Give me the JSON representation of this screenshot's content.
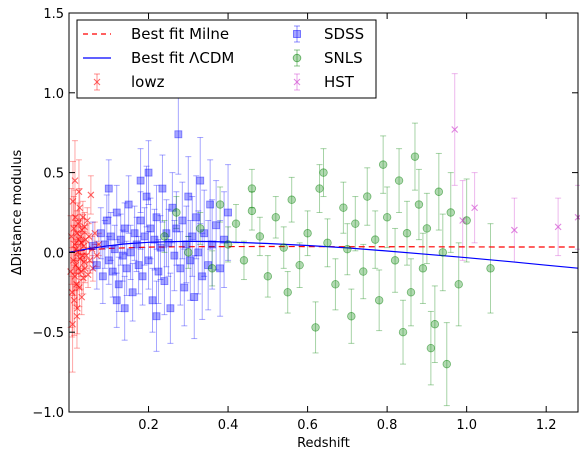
{
  "chart_data": {
    "type": "scatter",
    "xlabel": "Redshift",
    "ylabel": "ΔDistance modulus",
    "xlim": [
      0.0,
      1.28
    ],
    "ylim": [
      -1.0,
      1.5
    ],
    "xticks": [
      0.2,
      0.4,
      0.6,
      0.8,
      1.0,
      1.2
    ],
    "xtick_labels": [
      "0.2",
      "0.4",
      "0.6",
      "0.8",
      "1.0",
      "1.2"
    ],
    "yticks": [
      -1.0,
      -0.5,
      0.0,
      0.5,
      1.0,
      1.5
    ],
    "ytick_labels": [
      "−1.0",
      "−0.5",
      "0.0",
      "0.5",
      "1.0",
      "1.5"
    ],
    "grid": false,
    "legend_position": "top-left",
    "legend": [
      {
        "label": "Best fit Milne",
        "kind": "dashed-line",
        "color": "#ff0000"
      },
      {
        "label": "Best fit ΛCDM",
        "kind": "line",
        "color": "#0000ff"
      },
      {
        "label": "lowz",
        "kind": "errorbar-x",
        "color": "#ff0000"
      },
      {
        "label": "SDSS",
        "kind": "errorbar-square",
        "color": "#0000ff"
      },
      {
        "label": "SNLS",
        "kind": "errorbar-circle",
        "color": "#008000"
      },
      {
        "label": "HST",
        "kind": "errorbar-x",
        "color": "#cc33cc"
      }
    ],
    "series": [
      {
        "name": "Best fit Milne",
        "kind": "curve",
        "style": "dashed",
        "color": "#ff0000",
        "points": [
          [
            0.0,
            0.0
          ],
          [
            0.02,
            0.008
          ],
          [
            0.05,
            0.016
          ],
          [
            0.1,
            0.025
          ],
          [
            0.2,
            0.033
          ],
          [
            0.3,
            0.036
          ],
          [
            0.5,
            0.037
          ],
          [
            0.7,
            0.036
          ],
          [
            0.9,
            0.035
          ],
          [
            1.1,
            0.034
          ],
          [
            1.28,
            0.034
          ]
        ]
      },
      {
        "name": "Best fit ΛCDM",
        "kind": "curve",
        "style": "solid",
        "color": "#0000ff",
        "points": [
          [
            0.0,
            0.0
          ],
          [
            0.05,
            0.024
          ],
          [
            0.1,
            0.042
          ],
          [
            0.15,
            0.055
          ],
          [
            0.2,
            0.063
          ],
          [
            0.25,
            0.067
          ],
          [
            0.3,
            0.069
          ],
          [
            0.35,
            0.068
          ],
          [
            0.4,
            0.065
          ],
          [
            0.5,
            0.056
          ],
          [
            0.6,
            0.043
          ],
          [
            0.7,
            0.028
          ],
          [
            0.8,
            0.009
          ],
          [
            0.9,
            -0.012
          ],
          [
            1.0,
            -0.033
          ],
          [
            1.1,
            -0.056
          ],
          [
            1.2,
            -0.08
          ],
          [
            1.28,
            -0.099
          ]
        ]
      },
      {
        "name": "lowz",
        "kind": "points",
        "marker": "x",
        "color": "#ff0000",
        "points": [
          [
            0.004,
            -0.12,
            0.35
          ],
          [
            0.006,
            0.1,
            0.3
          ],
          [
            0.008,
            -0.25,
            0.28
          ],
          [
            0.01,
            0.32,
            0.25
          ],
          [
            0.011,
            -0.05,
            0.22
          ],
          [
            0.012,
            0.15,
            0.2
          ],
          [
            0.013,
            -0.3,
            0.22
          ],
          [
            0.014,
            0.05,
            0.18
          ],
          [
            0.015,
            -0.15,
            0.18
          ],
          [
            0.016,
            0.22,
            0.17
          ],
          [
            0.017,
            -0.08,
            0.16
          ],
          [
            0.018,
            0.02,
            0.15
          ],
          [
            0.019,
            -0.2,
            0.15
          ],
          [
            0.02,
            0.12,
            0.14
          ],
          [
            0.021,
            -0.35,
            0.16
          ],
          [
            0.022,
            0.0,
            0.13
          ],
          [
            0.023,
            0.18,
            0.13
          ],
          [
            0.024,
            -0.1,
            0.12
          ],
          [
            0.025,
            0.08,
            0.12
          ],
          [
            0.026,
            -0.22,
            0.12
          ],
          [
            0.027,
            0.28,
            0.12
          ],
          [
            0.028,
            -0.04,
            0.11
          ],
          [
            0.029,
            0.1,
            0.11
          ],
          [
            0.03,
            -0.12,
            0.11
          ],
          [
            0.031,
            0.06,
            0.1
          ],
          [
            0.032,
            -0.28,
            0.11
          ],
          [
            0.033,
            0.14,
            0.1
          ],
          [
            0.034,
            -0.02,
            0.1
          ],
          [
            0.035,
            0.22,
            0.1
          ],
          [
            0.036,
            -0.16,
            0.1
          ],
          [
            0.037,
            0.04,
            0.09
          ],
          [
            0.038,
            -0.06,
            0.09
          ],
          [
            0.039,
            0.16,
            0.09
          ],
          [
            0.04,
            -0.1,
            0.09
          ],
          [
            0.042,
            0.08,
            0.09
          ],
          [
            0.044,
            -0.02,
            0.08
          ],
          [
            0.046,
            0.2,
            0.08
          ],
          [
            0.048,
            -0.14,
            0.08
          ],
          [
            0.05,
            0.1,
            0.08
          ],
          [
            0.052,
            -0.05,
            0.08
          ],
          [
            0.055,
            0.36,
            0.12
          ],
          [
            0.058,
            0.02,
            0.08
          ],
          [
            0.06,
            -0.1,
            0.08
          ],
          [
            0.065,
            0.12,
            0.07
          ],
          [
            0.07,
            -0.02,
            0.07
          ],
          [
            0.075,
            0.05,
            0.07
          ],
          [
            0.009,
            -0.45,
            0.3
          ],
          [
            0.015,
            0.45,
            0.25
          ],
          [
            0.02,
            -0.4,
            0.2
          ],
          [
            0.025,
            0.38,
            0.2
          ]
        ]
      },
      {
        "name": "SDSS",
        "kind": "points",
        "marker": "square",
        "color": "#0000ff",
        "points": [
          [
            0.06,
            0.04,
            0.15
          ],
          [
            0.07,
            -0.08,
            0.15
          ],
          [
            0.08,
            0.12,
            0.16
          ],
          [
            0.085,
            -0.15,
            0.17
          ],
          [
            0.09,
            0.05,
            0.15
          ],
          [
            0.095,
            0.2,
            0.16
          ],
          [
            0.1,
            -0.05,
            0.15
          ],
          [
            0.105,
            0.1,
            0.15
          ],
          [
            0.11,
            -0.12,
            0.16
          ],
          [
            0.115,
            0.02,
            0.15
          ],
          [
            0.12,
            0.25,
            0.17
          ],
          [
            0.125,
            -0.2,
            0.17
          ],
          [
            0.13,
            0.08,
            0.16
          ],
          [
            0.135,
            -0.02,
            0.16
          ],
          [
            0.14,
            0.15,
            0.16
          ],
          [
            0.145,
            -0.1,
            0.17
          ],
          [
            0.15,
            0.3,
            0.18
          ],
          [
            0.155,
            0.0,
            0.17
          ],
          [
            0.16,
            -0.25,
            0.18
          ],
          [
            0.165,
            0.12,
            0.17
          ],
          [
            0.17,
            0.05,
            0.17
          ],
          [
            0.175,
            -0.08,
            0.18
          ],
          [
            0.18,
            0.2,
            0.18
          ],
          [
            0.185,
            -0.15,
            0.18
          ],
          [
            0.19,
            0.1,
            0.18
          ],
          [
            0.195,
            0.35,
            0.19
          ],
          [
            0.2,
            -0.05,
            0.18
          ],
          [
            0.205,
            0.15,
            0.19
          ],
          [
            0.21,
            -0.3,
            0.2
          ],
          [
            0.215,
            0.08,
            0.19
          ],
          [
            0.22,
            0.22,
            0.2
          ],
          [
            0.225,
            -0.12,
            0.2
          ],
          [
            0.23,
            0.03,
            0.2
          ],
          [
            0.235,
            0.4,
            0.21
          ],
          [
            0.24,
            -0.18,
            0.21
          ],
          [
            0.245,
            0.12,
            0.21
          ],
          [
            0.25,
            0.06,
            0.21
          ],
          [
            0.255,
            -0.35,
            0.22
          ],
          [
            0.26,
            0.28,
            0.22
          ],
          [
            0.265,
            -0.02,
            0.22
          ],
          [
            0.27,
            0.15,
            0.23
          ],
          [
            0.275,
            0.74,
            0.25
          ],
          [
            0.28,
            -0.1,
            0.23
          ],
          [
            0.285,
            0.2,
            0.24
          ],
          [
            0.29,
            -0.22,
            0.24
          ],
          [
            0.295,
            0.05,
            0.24
          ],
          [
            0.3,
            0.35,
            0.25
          ],
          [
            0.305,
            -0.05,
            0.25
          ],
          [
            0.31,
            0.1,
            0.25
          ],
          [
            0.315,
            -0.28,
            0.26
          ],
          [
            0.32,
            0.22,
            0.26
          ],
          [
            0.325,
            0.0,
            0.26
          ],
          [
            0.33,
            0.45,
            0.27
          ],
          [
            0.335,
            -0.15,
            0.27
          ],
          [
            0.34,
            0.12,
            0.27
          ],
          [
            0.35,
            -0.08,
            0.28
          ],
          [
            0.355,
            0.3,
            0.28
          ],
          [
            0.36,
            0.05,
            0.28
          ],
          [
            0.37,
            0.17,
            0.28
          ],
          [
            0.38,
            -0.1,
            0.3
          ],
          [
            0.39,
            0.08,
            0.3
          ],
          [
            0.4,
            0.25,
            0.3
          ],
          [
            0.1,
            0.4,
            0.18
          ],
          [
            0.14,
            -0.35,
            0.2
          ],
          [
            0.18,
            0.45,
            0.2
          ],
          [
            0.22,
            -0.4,
            0.22
          ],
          [
            0.12,
            -0.3,
            0.17
          ],
          [
            0.2,
            0.5,
            0.2
          ]
        ]
      },
      {
        "name": "SNLS",
        "kind": "points",
        "marker": "circle",
        "color": "#008000",
        "points": [
          [
            0.24,
            0.1,
            0.1
          ],
          [
            0.27,
            0.25,
            0.1
          ],
          [
            0.3,
            0.0,
            0.1
          ],
          [
            0.33,
            0.15,
            0.1
          ],
          [
            0.36,
            -0.1,
            0.11
          ],
          [
            0.38,
            0.3,
            0.11
          ],
          [
            0.4,
            0.05,
            0.11
          ],
          [
            0.42,
            0.18,
            0.12
          ],
          [
            0.44,
            -0.05,
            0.12
          ],
          [
            0.46,
            0.26,
            0.12
          ],
          [
            0.48,
            0.1,
            0.12
          ],
          [
            0.5,
            -0.15,
            0.13
          ],
          [
            0.52,
            0.22,
            0.13
          ],
          [
            0.54,
            0.03,
            0.13
          ],
          [
            0.56,
            0.33,
            0.14
          ],
          [
            0.58,
            -0.08,
            0.14
          ],
          [
            0.6,
            0.12,
            0.14
          ],
          [
            0.62,
            -0.47,
            0.16
          ],
          [
            0.63,
            0.4,
            0.15
          ],
          [
            0.65,
            0.06,
            0.15
          ],
          [
            0.67,
            -0.2,
            0.16
          ],
          [
            0.69,
            0.28,
            0.16
          ],
          [
            0.7,
            0.02,
            0.16
          ],
          [
            0.72,
            0.18,
            0.17
          ],
          [
            0.74,
            -0.12,
            0.17
          ],
          [
            0.75,
            0.35,
            0.18
          ],
          [
            0.77,
            0.08,
            0.18
          ],
          [
            0.78,
            -0.3,
            0.19
          ],
          [
            0.8,
            0.22,
            0.19
          ],
          [
            0.82,
            -0.05,
            0.2
          ],
          [
            0.83,
            0.45,
            0.2
          ],
          [
            0.85,
            0.12,
            0.2
          ],
          [
            0.86,
            -0.25,
            0.21
          ],
          [
            0.88,
            0.3,
            0.22
          ],
          [
            0.89,
            -0.1,
            0.22
          ],
          [
            0.9,
            0.15,
            0.22
          ],
          [
            0.92,
            -0.45,
            0.24
          ],
          [
            0.93,
            0.38,
            0.24
          ],
          [
            0.94,
            0.0,
            0.24
          ],
          [
            0.95,
            -0.7,
            0.26
          ],
          [
            0.96,
            0.25,
            0.25
          ],
          [
            0.98,
            -0.2,
            0.26
          ],
          [
            1.0,
            0.2,
            0.26
          ],
          [
            1.06,
            -0.1,
            0.28
          ],
          [
            0.46,
            0.4,
            0.12
          ],
          [
            0.55,
            -0.25,
            0.13
          ],
          [
            0.64,
            0.5,
            0.15
          ],
          [
            0.71,
            -0.4,
            0.17
          ],
          [
            0.79,
            0.55,
            0.18
          ],
          [
            0.84,
            -0.5,
            0.2
          ],
          [
            0.87,
            0.6,
            0.21
          ],
          [
            0.91,
            -0.6,
            0.23
          ]
        ]
      },
      {
        "name": "HST",
        "kind": "points",
        "marker": "x",
        "color": "#cc33cc",
        "points": [
          [
            0.97,
            0.77,
            0.35
          ],
          [
            0.99,
            0.2,
            0.25
          ],
          [
            1.02,
            0.28,
            0.22
          ],
          [
            1.12,
            0.14,
            0.2
          ],
          [
            1.23,
            0.16,
            0.18
          ],
          [
            1.28,
            0.22,
            0.2
          ]
        ]
      }
    ]
  }
}
